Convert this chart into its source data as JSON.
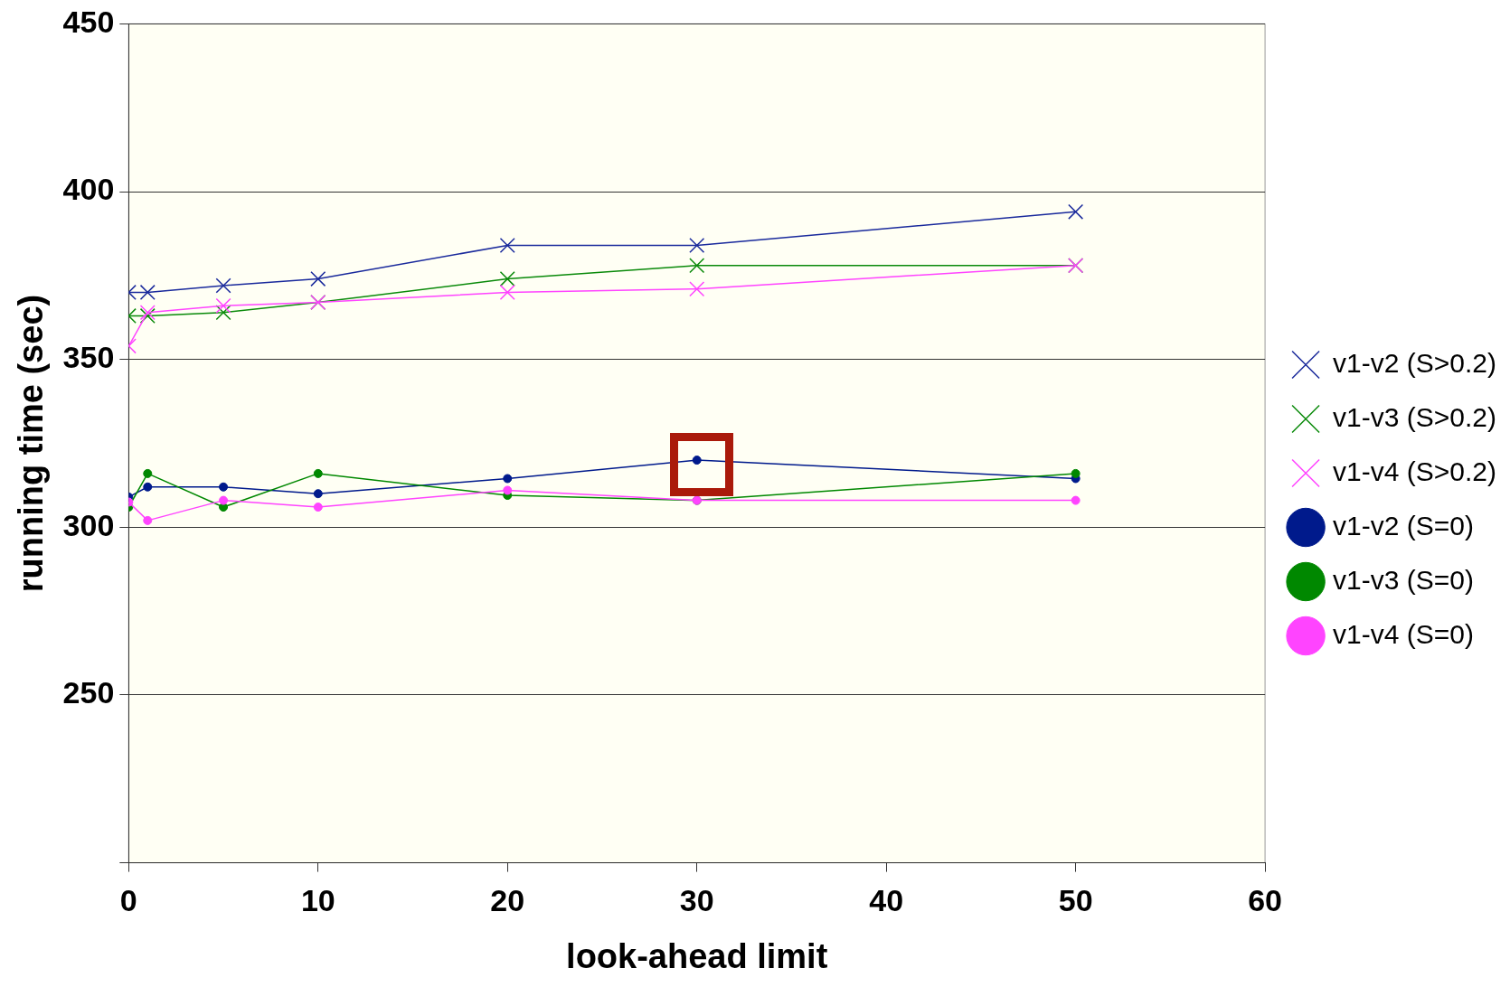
{
  "chart_data": {
    "type": "line",
    "xlabel": "look-ahead limit",
    "ylabel": "running time (sec)",
    "xlim": [
      0,
      60
    ],
    "xticks": [
      0,
      10,
      20,
      30,
      40,
      50,
      60
    ],
    "ylim": [
      200,
      450
    ],
    "yticks": [
      {
        "value": 200,
        "label": null
      },
      250,
      300,
      350,
      400,
      450
    ],
    "grid": "y",
    "legend": "right",
    "series": [
      {
        "name": "v1-v2 (S>0.2)",
        "color": "#1a2a9c",
        "marker": "cross",
        "x": [
          0,
          1,
          5,
          10,
          20,
          30,
          50
        ],
        "values": [
          370,
          370,
          372,
          374,
          384,
          384,
          394
        ]
      },
      {
        "name": "v1-v3 (S>0.2)",
        "color": "#0a8a0a",
        "marker": "cross",
        "x": [
          0,
          1,
          5,
          10,
          20,
          30,
          50
        ],
        "values": [
          363,
          363,
          364,
          367,
          374,
          378,
          378
        ]
      },
      {
        "name": "v1-v4 (S>0.2)",
        "color": "#ff44ff",
        "marker": "cross",
        "x": [
          0,
          1,
          5,
          10,
          20,
          30,
          50
        ],
        "values": [
          354,
          364,
          366,
          367,
          370,
          371,
          378
        ]
      },
      {
        "name": "v1-v2 (S=0)",
        "color": "#001a8c",
        "marker": "circle",
        "x": [
          0,
          1,
          5,
          10,
          20,
          30,
          50
        ],
        "values": [
          309,
          312,
          312,
          310,
          314.5,
          320,
          314.5
        ]
      },
      {
        "name": "v1-v3 (S=0)",
        "color": "#008800",
        "marker": "circle",
        "x": [
          0,
          1,
          5,
          10,
          20,
          30,
          50
        ],
        "values": [
          306,
          316,
          306,
          316,
          309.5,
          308,
          316
        ]
      },
      {
        "name": "v1-v4 (S=0)",
        "color": "#ff44ff",
        "marker": "circle",
        "x": [
          0,
          1,
          5,
          10,
          20,
          30,
          50
        ],
        "values": [
          307.5,
          302,
          308,
          306,
          311,
          308,
          308
        ]
      }
    ]
  }
}
